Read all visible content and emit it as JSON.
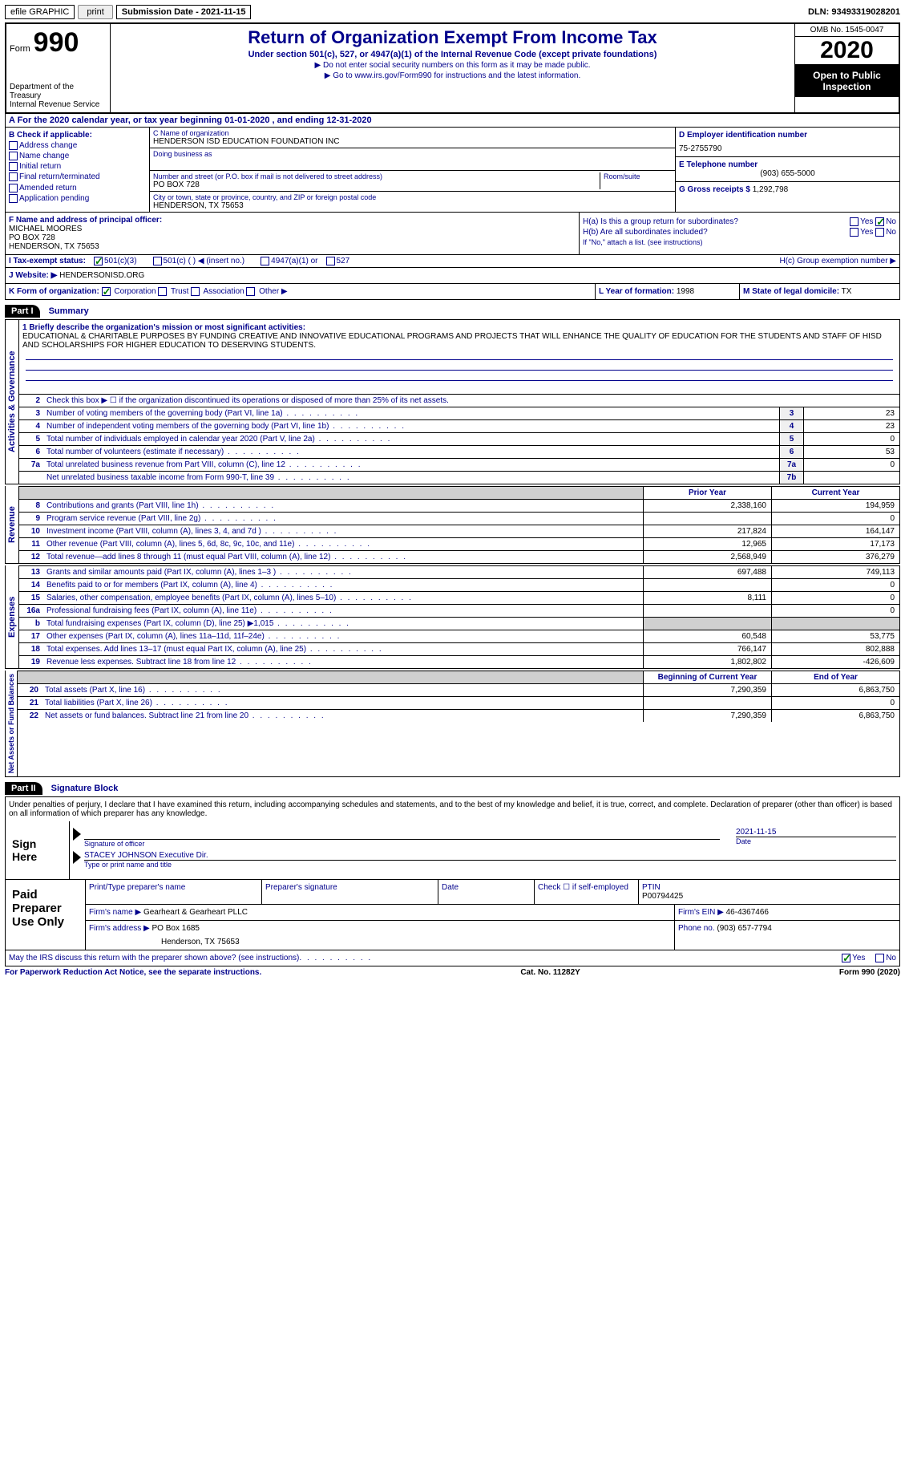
{
  "topbar": {
    "efile": "efile GRAPHIC",
    "print": "print",
    "submission": "Submission Date - 2021-11-15",
    "dln": "DLN: 93493319028201"
  },
  "header": {
    "form_label": "Form",
    "form_number": "990",
    "dept": "Department of the Treasury\nInternal Revenue Service",
    "title": "Return of Organization Exempt From Income Tax",
    "subtitle": "Under section 501(c), 527, or 4947(a)(1) of the Internal Revenue Code (except private foundations)",
    "instr1": "▶ Do not enter social security numbers on this form as it may be made public.",
    "instr2": "▶ Go to www.irs.gov/Form990 for instructions and the latest information.",
    "omb": "OMB No. 1545-0047",
    "year": "2020",
    "open_public": "Open to Public Inspection"
  },
  "period": "A For the 2020 calendar year, or tax year beginning 01-01-2020   , and ending 12-31-2020",
  "section_b": {
    "title": "B Check if applicable:",
    "items": [
      "Address change",
      "Name change",
      "Initial return",
      "Final return/terminated",
      "Amended return",
      "Application pending"
    ]
  },
  "section_c": {
    "name_label": "C Name of organization",
    "name": "HENDERSON ISD EDUCATION FOUNDATION INC",
    "dba_label": "Doing business as",
    "dba": "",
    "addr_label": "Number and street (or P.O. box if mail is not delivered to street address)",
    "room_label": "Room/suite",
    "addr": "PO BOX 728",
    "city_label": "City or town, state or province, country, and ZIP or foreign postal code",
    "city": "HENDERSON, TX  75653"
  },
  "section_d": {
    "ein_label": "D Employer identification number",
    "ein": "75-2755790",
    "phone_label": "E Telephone number",
    "phone": "(903) 655-5000",
    "gross_label": "G Gross receipts $",
    "gross": "1,292,798"
  },
  "section_f": {
    "label": "F Name and address of principal officer:",
    "name": "MICHAEL MOORES",
    "addr1": "PO BOX 728",
    "addr2": "HENDERSON, TX  75653"
  },
  "section_h": {
    "ha": "H(a) Is this a group return for subordinates?",
    "hb": "H(b) Are all subordinates included?",
    "hb_note": "If \"No,\" attach a list. (see instructions)",
    "hc": "H(c) Group exemption number ▶"
  },
  "tax_exempt": {
    "label": "I   Tax-exempt status:",
    "c3": "501(c)(3)",
    "c": "501(c) (  ) ◀ (insert no.)",
    "a1": "4947(a)(1) or",
    "527": "527"
  },
  "website": {
    "label": "J   Website: ▶",
    "value": "HENDERSONISD.ORG"
  },
  "form_org": {
    "label": "K Form of organization:",
    "corp": "Corporation",
    "trust": "Trust",
    "assoc": "Association",
    "other": "Other ▶",
    "year_label": "L Year of formation:",
    "year": "1998",
    "state_label": "M State of legal domicile:",
    "state": "TX"
  },
  "part1": {
    "header": "Part I",
    "title": "Summary",
    "mission_label": "1   Briefly describe the organization's mission or most significant activities:",
    "mission": "EDUCATIONAL & CHARITABLE PURPOSES BY FUNDING CREATIVE AND INNOVATIVE EDUCATIONAL PROGRAMS AND PROJECTS THAT WILL ENHANCE THE QUALITY OF EDUCATION FOR THE STUDENTS AND STAFF OF HISD AND SCHOLARSHIPS FOR HIGHER EDUCATION TO DESERVING STUDENTS.",
    "line2": "Check this box ▶ ☐ if the organization discontinued its operations or disposed of more than 25% of its net assets.",
    "governance_label": "Activities & Governance",
    "revenue_label": "Revenue",
    "expenses_label": "Expenses",
    "netassets_label": "Net Assets or Fund Balances",
    "lines": [
      {
        "n": "3",
        "t": "Number of voting members of the governing body (Part VI, line 1a)",
        "c": "3",
        "v": "23"
      },
      {
        "n": "4",
        "t": "Number of independent voting members of the governing body (Part VI, line 1b)",
        "c": "4",
        "v": "23"
      },
      {
        "n": "5",
        "t": "Total number of individuals employed in calendar year 2020 (Part V, line 2a)",
        "c": "5",
        "v": "0"
      },
      {
        "n": "6",
        "t": "Total number of volunteers (estimate if necessary)",
        "c": "6",
        "v": "53"
      },
      {
        "n": "7a",
        "t": "Total unrelated business revenue from Part VIII, column (C), line 12",
        "c": "7a",
        "v": "0"
      },
      {
        "n": "",
        "t": "Net unrelated business taxable income from Form 990-T, line 39",
        "c": "7b",
        "v": ""
      }
    ],
    "prior_label": "Prior Year",
    "current_label": "Current Year",
    "boy_label": "Beginning of Current Year",
    "eoy_label": "End of Year",
    "revenue": [
      {
        "n": "8",
        "t": "Contributions and grants (Part VIII, line 1h)",
        "p": "2,338,160",
        "c": "194,959"
      },
      {
        "n": "9",
        "t": "Program service revenue (Part VIII, line 2g)",
        "p": "",
        "c": "0"
      },
      {
        "n": "10",
        "t": "Investment income (Part VIII, column (A), lines 3, 4, and 7d )",
        "p": "217,824",
        "c": "164,147"
      },
      {
        "n": "11",
        "t": "Other revenue (Part VIII, column (A), lines 5, 6d, 8c, 9c, 10c, and 11e)",
        "p": "12,965",
        "c": "17,173"
      },
      {
        "n": "12",
        "t": "Total revenue—add lines 8 through 11 (must equal Part VIII, column (A), line 12)",
        "p": "2,568,949",
        "c": "376,279"
      }
    ],
    "expenses": [
      {
        "n": "13",
        "t": "Grants and similar amounts paid (Part IX, column (A), lines 1–3 )",
        "p": "697,488",
        "c": "749,113"
      },
      {
        "n": "14",
        "t": "Benefits paid to or for members (Part IX, column (A), line 4)",
        "p": "",
        "c": "0"
      },
      {
        "n": "15",
        "t": "Salaries, other compensation, employee benefits (Part IX, column (A), lines 5–10)",
        "p": "8,111",
        "c": "0"
      },
      {
        "n": "16a",
        "t": "Professional fundraising fees (Part IX, column (A), line 11e)",
        "p": "",
        "c": "0"
      },
      {
        "n": "b",
        "t": "Total fundraising expenses (Part IX, column (D), line 25) ▶1,015",
        "p": "gray",
        "c": "gray"
      },
      {
        "n": "17",
        "t": "Other expenses (Part IX, column (A), lines 11a–11d, 11f–24e)",
        "p": "60,548",
        "c": "53,775"
      },
      {
        "n": "18",
        "t": "Total expenses. Add lines 13–17 (must equal Part IX, column (A), line 25)",
        "p": "766,147",
        "c": "802,888"
      },
      {
        "n": "19",
        "t": "Revenue less expenses. Subtract line 18 from line 12",
        "p": "1,802,802",
        "c": "-426,609"
      }
    ],
    "netassets": [
      {
        "n": "20",
        "t": "Total assets (Part X, line 16)",
        "p": "7,290,359",
        "c": "6,863,750"
      },
      {
        "n": "21",
        "t": "Total liabilities (Part X, line 26)",
        "p": "",
        "c": "0"
      },
      {
        "n": "22",
        "t": "Net assets or fund balances. Subtract line 21 from line 20",
        "p": "7,290,359",
        "c": "6,863,750"
      }
    ]
  },
  "part2": {
    "header": "Part II",
    "title": "Signature Block",
    "declare": "Under penalties of perjury, I declare that I have examined this return, including accompanying schedules and statements, and to the best of my knowledge and belief, it is true, correct, and complete. Declaration of preparer (other than officer) is based on all information of which preparer has any knowledge.",
    "sign_here": "Sign Here",
    "sig_officer": "Signature of officer",
    "date": "Date",
    "date_val": "2021-11-15",
    "name_title": "STACEY JOHNSON Executive Dir.",
    "name_title_label": "Type or print name and title",
    "paid_label": "Paid Preparer Use Only",
    "print_name_label": "Print/Type preparer's name",
    "prep_sig_label": "Preparer's signature",
    "check_if": "Check ☐ if self-employed",
    "ptin_label": "PTIN",
    "ptin": "P00794425",
    "firm_name_label": "Firm's name   ▶",
    "firm_name": "Gearheart & Gearheart PLLC",
    "firm_ein_label": "Firm's EIN ▶",
    "firm_ein": "46-4367466",
    "firm_addr_label": "Firm's address ▶",
    "firm_addr": "PO Box 1685",
    "firm_city": "Henderson, TX  75653",
    "firm_phone_label": "Phone no.",
    "firm_phone": "(903) 657-7794",
    "discuss": "May the IRS discuss this return with the preparer shown above? (see instructions)",
    "yes": "Yes",
    "no": "No"
  },
  "footer": {
    "left": "For Paperwork Reduction Act Notice, see the separate instructions.",
    "mid": "Cat. No. 11282Y",
    "right": "Form 990 (2020)"
  }
}
